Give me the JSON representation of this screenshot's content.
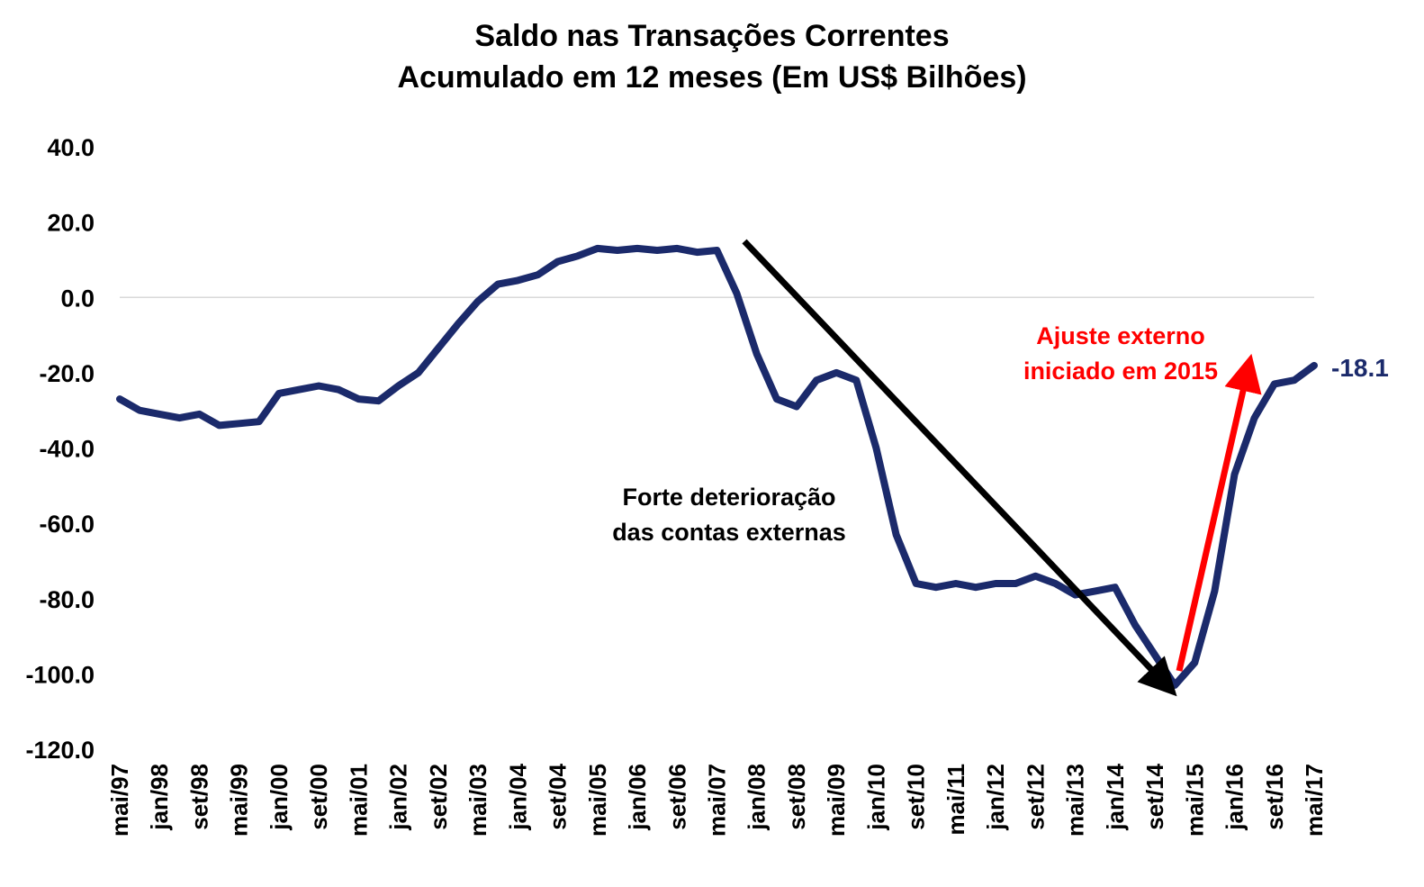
{
  "chart_data": {
    "type": "line",
    "title": "Saldo nas Transações Correntes",
    "subtitle": "Acumulado em 12 meses (Em US$ Bilhões)",
    "xlabel": "",
    "ylabel": "",
    "ylim": [
      -120,
      40
    ],
    "yticks": [
      "40.0",
      "20.0",
      "0.0",
      "-20.0",
      "-40.0",
      "-60.0",
      "-80.0",
      "-100.0",
      "-120.0"
    ],
    "xtick_labels": [
      "mai/97",
      "jan/98",
      "set/98",
      "mai/99",
      "jan/00",
      "set/00",
      "mai/01",
      "jan/02",
      "set/02",
      "mai/03",
      "jan/04",
      "set/04",
      "mai/05",
      "jan/06",
      "set/06",
      "mai/07",
      "jan/08",
      "set/08",
      "mai/09",
      "jan/10",
      "set/10",
      "mai/11",
      "jan/12",
      "set/12",
      "mai/13",
      "jan/14",
      "set/14",
      "mai/15",
      "jan/16",
      "set/16",
      "mai/17"
    ],
    "grid": false,
    "line_color": "#1b2a6b",
    "series": [
      {
        "name": "",
        "x": [
          "mai/97",
          "set/97",
          "jan/98",
          "mai/98",
          "set/98",
          "jan/99",
          "mai/99",
          "set/99",
          "jan/00",
          "mai/00",
          "set/00",
          "jan/01",
          "mai/01",
          "set/01",
          "jan/02",
          "mai/02",
          "set/02",
          "jan/03",
          "mai/03",
          "set/03",
          "jan/04",
          "mai/04",
          "set/04",
          "jan/05",
          "mai/05",
          "set/05",
          "jan/06",
          "mai/06",
          "set/06",
          "jan/07",
          "mai/07",
          "set/07",
          "jan/08",
          "mai/08",
          "set/08",
          "jan/09",
          "mai/09",
          "set/09",
          "jan/10",
          "mai/10",
          "set/10",
          "jan/11",
          "mai/11",
          "set/11",
          "jan/12",
          "mai/12",
          "set/12",
          "jan/13",
          "mai/13",
          "set/13",
          "jan/14",
          "mai/14",
          "set/14",
          "jan/15",
          "mai/15",
          "set/15",
          "jan/16",
          "mai/16",
          "set/16",
          "jan/17",
          "mai/17"
        ],
        "values": [
          -27.0,
          -30.0,
          -31.0,
          -32.0,
          -31.0,
          -34.0,
          -33.5,
          -33.0,
          -25.5,
          -24.5,
          -23.5,
          -24.5,
          -27.0,
          -27.5,
          -23.5,
          -20.0,
          -13.5,
          -7.0,
          -1.0,
          3.5,
          4.5,
          6.0,
          9.5,
          11.0,
          13.0,
          12.5,
          13.0,
          12.5,
          13.0,
          12.0,
          12.5,
          1.0,
          -15.0,
          -27.0,
          -29.0,
          -22.0,
          -20.0,
          -22.0,
          -40.0,
          -63.0,
          -76.0,
          -77.0,
          -76.0,
          -77.0,
          -76.0,
          -76.0,
          -74.0,
          -76.0,
          -79.0,
          -78.0,
          -77.0,
          -87.0,
          -95.0,
          -103.0,
          -97.0,
          -78.0,
          -47.0,
          -32.0,
          -23.0,
          -22.0,
          -18.1
        ]
      }
    ],
    "end_label": "-18.1",
    "annotations": {
      "black_arrow_text": [
        "Forte deterioração",
        "das contas externas"
      ],
      "red_arrow_text": [
        "Ajuste externo",
        "iniciado em 2015"
      ],
      "black_arrow_color": "#000000",
      "red_arrow_color": "#ff0000"
    }
  }
}
